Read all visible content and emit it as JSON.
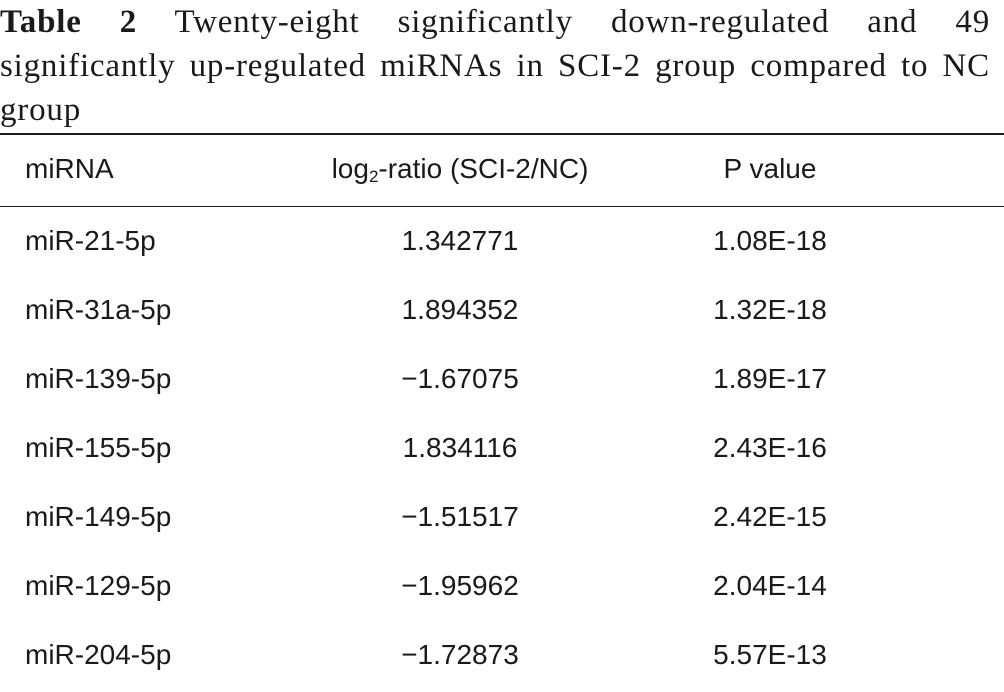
{
  "caption": {
    "label": "Table 2",
    "text": "Twenty-eight significantly down-regulated and 49 significantly up-regulated miRNAs in SCI-2 group compared to NC group"
  },
  "table": {
    "headers": {
      "col1": "miRNA",
      "col2_main": "log",
      "col2_sub": "2",
      "col2_rest": "-ratio (SCI-2/NC)",
      "col3": "P value"
    },
    "rows": [
      {
        "mirna": "miR-21-5p",
        "ratio": "1.342771",
        "p": "1.08E-18"
      },
      {
        "mirna": "miR-31a-5p",
        "ratio": "1.894352",
        "p": "1.32E-18"
      },
      {
        "mirna": "miR-139-5p",
        "ratio": "−1.67075",
        "p": "1.89E-17"
      },
      {
        "mirna": "miR-155-5p",
        "ratio": "1.834116",
        "p": "2.43E-16"
      },
      {
        "mirna": "miR-149-5p",
        "ratio": "−1.51517",
        "p": "2.42E-15"
      },
      {
        "mirna": "miR-129-5p",
        "ratio": "−1.95962",
        "p": "2.04E-14"
      },
      {
        "mirna": "miR-204-5p",
        "ratio": "−1.72873",
        "p": "5.57E-13"
      }
    ]
  }
}
